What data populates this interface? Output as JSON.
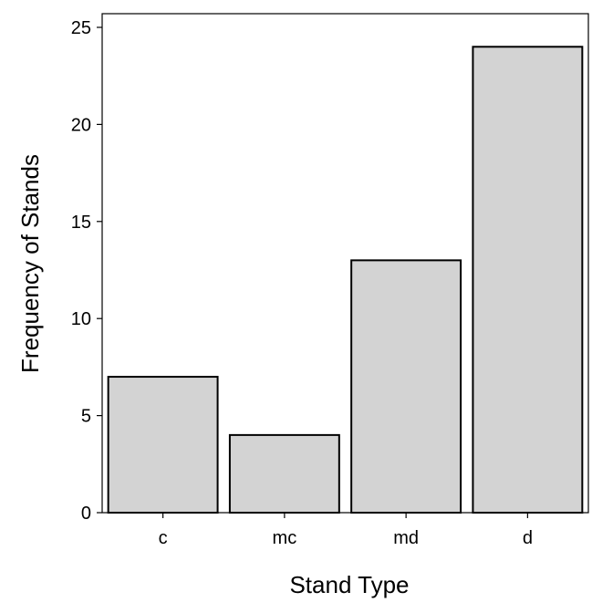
{
  "chart_data": {
    "type": "bar",
    "categories": [
      "c",
      "mc",
      "md",
      "d"
    ],
    "values": [
      7,
      4,
      13,
      24
    ],
    "title": "",
    "xlabel": "Stand Type",
    "ylabel": "Frequency of Stands",
    "ylim": [
      0,
      25
    ],
    "yticks": [
      0,
      5,
      10,
      15,
      20,
      25
    ],
    "bar_fill": "#d3d3d3",
    "bar_stroke": "#000000",
    "grid": false,
    "legend": "none"
  }
}
